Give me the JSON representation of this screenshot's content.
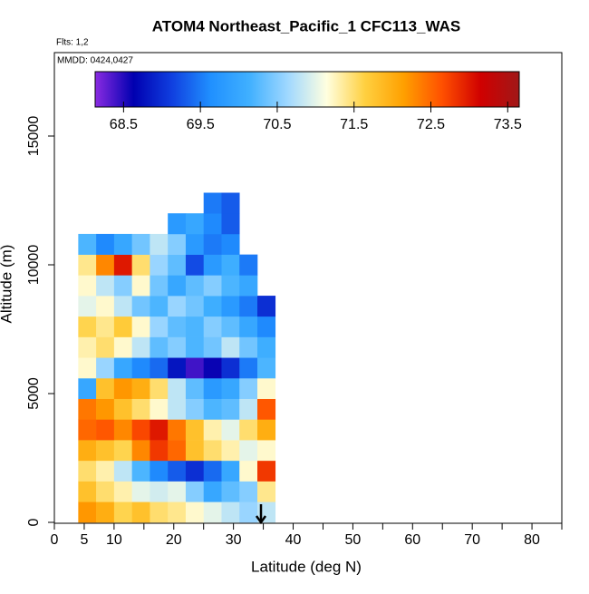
{
  "chart_data": {
    "type": "heatmap",
    "title": "ATOM4 Northeast_Pacific_1 CFC113_WAS",
    "notes": [
      "Flts: 1,2",
      "MMDD: 0424,0427"
    ],
    "xlabel": "Latitude (deg N)",
    "ylabel": "Altitude (m)",
    "xlim": [
      0,
      85
    ],
    "ylim": [
      0,
      18240
    ],
    "xticks": [
      0,
      5,
      10,
      20,
      30,
      40,
      50,
      60,
      70,
      80
    ],
    "xminor": [
      15,
      25,
      35,
      45,
      55,
      65,
      75,
      85
    ],
    "yticks": [
      0,
      5000,
      10000,
      15000
    ],
    "colorbar": {
      "lim": [
        68.13,
        73.65
      ],
      "ticks": [
        68.5,
        69.5,
        70.5,
        71.5,
        72.5,
        73.5
      ],
      "colors": [
        "#8a2be2",
        "#0000b0",
        "#1040e0",
        "#2090ff",
        "#40b0ff",
        "#a0d8ff",
        "#ffffe0",
        "#ffd040",
        "#ffa000",
        "#ff5000",
        "#d00000",
        "#a01818"
      ]
    },
    "x_bins": [
      4,
      7,
      10,
      13,
      16,
      19,
      22,
      25,
      28,
      31,
      34,
      37,
      40
    ],
    "y_bins": [
      0,
      800,
      1600,
      2400,
      3200,
      4000,
      4800,
      5600,
      6400,
      7200,
      8000,
      8800,
      9600,
      10400,
      11200,
      12000,
      12800
    ],
    "z": [
      [
        72.2,
        72,
        71.6,
        71.8,
        71.5,
        71.4,
        71.2,
        71,
        70.8,
        70.6,
        70.8,
        null
      ],
      [
        71.8,
        71.5,
        71.3,
        71,
        70.9,
        71,
        70.5,
        70,
        70.3,
        70.5,
        71.4,
        null
      ],
      [
        71.5,
        71.3,
        70.8,
        70.2,
        69.6,
        69.3,
        69,
        69.4,
        70,
        71.2,
        72.8,
        null
      ],
      [
        72,
        71.8,
        71.6,
        72.3,
        72.8,
        72.5,
        71.8,
        71.5,
        71.3,
        71,
        71.2,
        null
      ],
      [
        72.5,
        72.6,
        72.3,
        72.7,
        73,
        72.4,
        71.8,
        71.3,
        71,
        71.5,
        72,
        null
      ],
      [
        72.4,
        72.2,
        71.8,
        71.5,
        71.2,
        70.8,
        70.5,
        70.2,
        70.3,
        70.8,
        72.6,
        null
      ],
      [
        70,
        71.8,
        72.2,
        72,
        71.5,
        70.8,
        70.3,
        69.8,
        70,
        70.5,
        71.2,
        null
      ],
      [
        71.2,
        70.6,
        70,
        69.6,
        69.4,
        68.8,
        68.4,
        68.6,
        69,
        69.5,
        70.2,
        null
      ],
      [
        71.3,
        71.5,
        71.2,
        70.8,
        70.3,
        70.5,
        70.2,
        70.4,
        70.8,
        70.4,
        70.1,
        null
      ],
      [
        71.6,
        71.4,
        71.7,
        71.2,
        70.6,
        70.3,
        70.2,
        70.5,
        70.3,
        70,
        69.6,
        null
      ],
      [
        71,
        71.2,
        70.8,
        70.4,
        70.2,
        70.6,
        70.4,
        70.1,
        69.8,
        69.5,
        69,
        null
      ],
      [
        71.2,
        70.8,
        70.5,
        71.2,
        70.4,
        70,
        70.3,
        70.5,
        70.2,
        70,
        null,
        null
      ],
      [
        71.4,
        72.3,
        73,
        71.5,
        70.6,
        70.3,
        69.2,
        69.8,
        70.1,
        69.5,
        null,
        null
      ],
      [
        70.2,
        69.6,
        70,
        70.4,
        70.8,
        70.5,
        69.8,
        69.5,
        69.6,
        null,
        null,
        null
      ],
      [
        null,
        null,
        null,
        null,
        null,
        69.8,
        70,
        69.6,
        69.3,
        null,
        null,
        null
      ],
      [
        null,
        null,
        null,
        null,
        null,
        null,
        null,
        69.5,
        69.3,
        null,
        null,
        null
      ]
    ]
  }
}
